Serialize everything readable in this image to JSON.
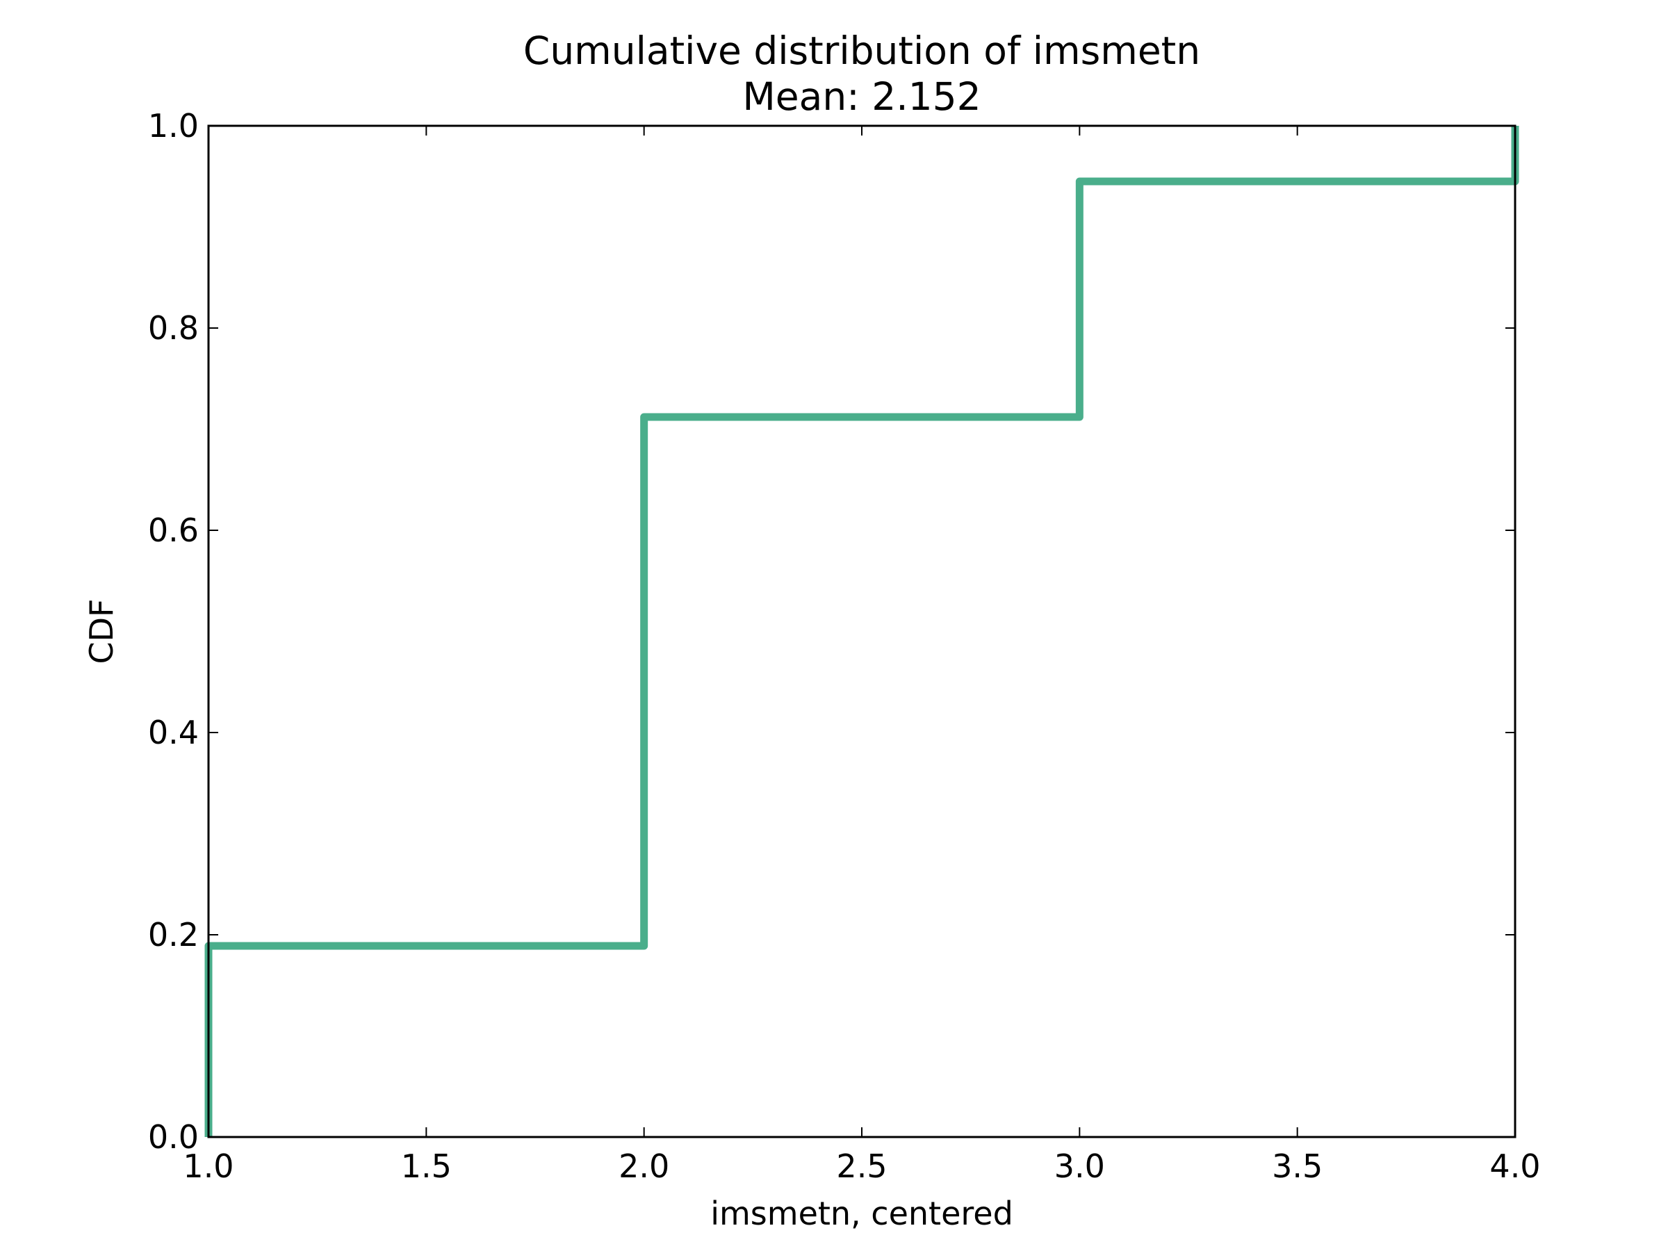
{
  "chart_data": {
    "type": "line",
    "drawstyle": "steps-post",
    "title": "Cumulative distribution of imsmetn",
    "subtitle": "Mean: 2.152",
    "xlabel": "imsmetn, centered",
    "ylabel": "CDF",
    "xlim": [
      1.0,
      4.0
    ],
    "ylim": [
      0.0,
      1.0
    ],
    "xticks": [
      1.0,
      1.5,
      2.0,
      2.5,
      3.0,
      3.5,
      4.0
    ],
    "xtick_labels": [
      "1.0",
      "1.5",
      "2.0",
      "2.5",
      "3.0",
      "3.5",
      "4.0"
    ],
    "yticks": [
      0.0,
      0.2,
      0.4,
      0.6,
      0.8,
      1.0
    ],
    "ytick_labels": [
      "0.0",
      "0.2",
      "0.4",
      "0.6",
      "0.8",
      "1.0"
    ],
    "grid": false,
    "legend": "none",
    "series": [
      {
        "color": "#4aae8b",
        "x": [
          1.0,
          1.0,
          2.0,
          2.0,
          3.0,
          3.0,
          4.0,
          4.0
        ],
        "y": [
          0.0,
          0.189,
          0.189,
          0.712,
          0.712,
          0.945,
          0.945,
          1.0
        ]
      }
    ]
  }
}
